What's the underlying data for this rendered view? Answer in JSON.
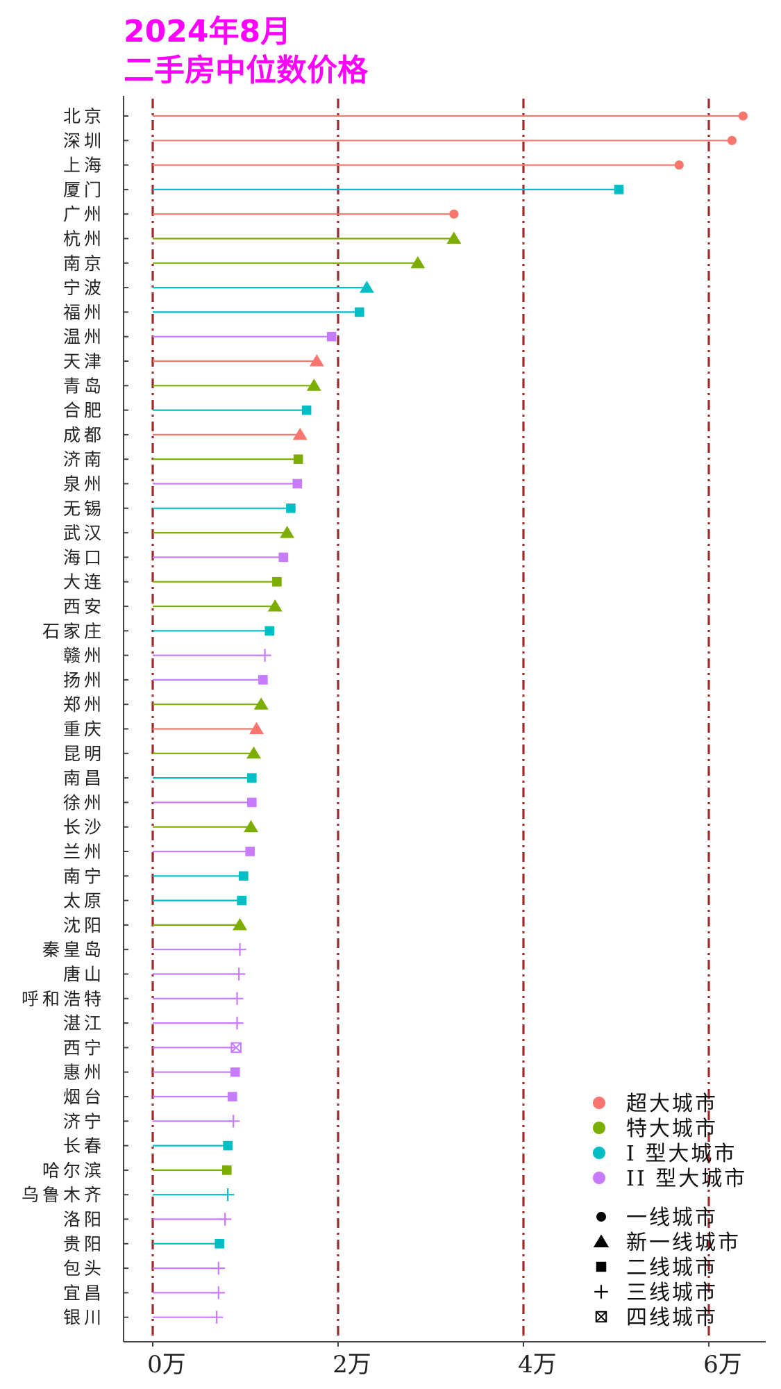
{
  "chart_data": {
    "type": "lollipop",
    "title_lines": [
      "2024年8月",
      "二手房中位数价格"
    ],
    "xlim": [
      -0.15,
      6.6
    ],
    "x_ticks": [
      {
        "value": 0,
        "label": "0万"
      },
      {
        "value": 2,
        "label": "2万"
      },
      {
        "value": 4,
        "label": "4万"
      },
      {
        "value": 6,
        "label": "6万"
      }
    ],
    "vlines": [
      0,
      2,
      4,
      6
    ],
    "vline_color": "#9e2a2b",
    "scale_colors": {
      "超大城市": "#f8766d",
      "特大城市": "#7cae00",
      "I 型大城市": "#00bfc4",
      "II 型大城市": "#c77cff"
    },
    "color_legend": [
      "超大城市",
      "特大城市",
      "I 型大城市",
      "II 型大城市"
    ],
    "shape_legend": [
      {
        "label": "一线城市",
        "shape": "circle"
      },
      {
        "label": "新一线城市",
        "shape": "triangle"
      },
      {
        "label": "二线城市",
        "shape": "square"
      },
      {
        "label": "三线城市",
        "shape": "plus"
      },
      {
        "label": "四线城市",
        "shape": "boxcross"
      }
    ],
    "points": [
      {
        "city": "北京",
        "value": 6.37,
        "scale": "超大城市",
        "tier": "circle"
      },
      {
        "city": "深圳",
        "value": 6.25,
        "scale": "超大城市",
        "tier": "circle"
      },
      {
        "city": "上海",
        "value": 5.68,
        "scale": "超大城市",
        "tier": "circle"
      },
      {
        "city": "厦门",
        "value": 5.03,
        "scale": "I 型大城市",
        "tier": "square"
      },
      {
        "city": "广州",
        "value": 3.25,
        "scale": "超大城市",
        "tier": "circle"
      },
      {
        "city": "杭州",
        "value": 3.25,
        "scale": "特大城市",
        "tier": "triangle"
      },
      {
        "city": "南京",
        "value": 2.86,
        "scale": "特大城市",
        "tier": "triangle"
      },
      {
        "city": "宁波",
        "value": 2.31,
        "scale": "I 型大城市",
        "tier": "triangle"
      },
      {
        "city": "福州",
        "value": 2.23,
        "scale": "I 型大城市",
        "tier": "square"
      },
      {
        "city": "温州",
        "value": 1.93,
        "scale": "II 型大城市",
        "tier": "square"
      },
      {
        "city": "天津",
        "value": 1.77,
        "scale": "超大城市",
        "tier": "triangle"
      },
      {
        "city": "青岛",
        "value": 1.74,
        "scale": "特大城市",
        "tier": "triangle"
      },
      {
        "city": "合肥",
        "value": 1.66,
        "scale": "I 型大城市",
        "tier": "square"
      },
      {
        "city": "成都",
        "value": 1.59,
        "scale": "超大城市",
        "tier": "triangle"
      },
      {
        "city": "济南",
        "value": 1.57,
        "scale": "特大城市",
        "tier": "square"
      },
      {
        "city": "泉州",
        "value": 1.56,
        "scale": "II 型大城市",
        "tier": "square"
      },
      {
        "city": "无锡",
        "value": 1.49,
        "scale": "I 型大城市",
        "tier": "square"
      },
      {
        "city": "武汉",
        "value": 1.45,
        "scale": "特大城市",
        "tier": "triangle"
      },
      {
        "city": "海口",
        "value": 1.41,
        "scale": "II 型大城市",
        "tier": "square"
      },
      {
        "city": "大连",
        "value": 1.34,
        "scale": "特大城市",
        "tier": "square"
      },
      {
        "city": "西安",
        "value": 1.32,
        "scale": "特大城市",
        "tier": "triangle"
      },
      {
        "city": "石家庄",
        "value": 1.26,
        "scale": "I 型大城市",
        "tier": "square"
      },
      {
        "city": "赣州",
        "value": 1.21,
        "scale": "II 型大城市",
        "tier": "plus"
      },
      {
        "city": "扬州",
        "value": 1.19,
        "scale": "II 型大城市",
        "tier": "square"
      },
      {
        "city": "郑州",
        "value": 1.17,
        "scale": "特大城市",
        "tier": "triangle"
      },
      {
        "city": "重庆",
        "value": 1.12,
        "scale": "超大城市",
        "tier": "triangle"
      },
      {
        "city": "昆明",
        "value": 1.09,
        "scale": "特大城市",
        "tier": "triangle"
      },
      {
        "city": "南昌",
        "value": 1.07,
        "scale": "I 型大城市",
        "tier": "square"
      },
      {
        "city": "徐州",
        "value": 1.07,
        "scale": "II 型大城市",
        "tier": "square"
      },
      {
        "city": "长沙",
        "value": 1.06,
        "scale": "特大城市",
        "tier": "triangle"
      },
      {
        "city": "兰州",
        "value": 1.05,
        "scale": "II 型大城市",
        "tier": "square"
      },
      {
        "city": "南宁",
        "value": 0.98,
        "scale": "I 型大城市",
        "tier": "square"
      },
      {
        "city": "太原",
        "value": 0.96,
        "scale": "I 型大城市",
        "tier": "square"
      },
      {
        "city": "沈阳",
        "value": 0.94,
        "scale": "特大城市",
        "tier": "triangle"
      },
      {
        "city": "秦皇岛",
        "value": 0.94,
        "scale": "II 型大城市",
        "tier": "plus"
      },
      {
        "city": "唐山",
        "value": 0.93,
        "scale": "II 型大城市",
        "tier": "plus"
      },
      {
        "city": "呼和浩特",
        "value": 0.91,
        "scale": "II 型大城市",
        "tier": "plus"
      },
      {
        "city": "湛江",
        "value": 0.91,
        "scale": "II 型大城市",
        "tier": "plus"
      },
      {
        "city": "西宁",
        "value": 0.9,
        "scale": "II 型大城市",
        "tier": "boxcross"
      },
      {
        "city": "惠州",
        "value": 0.89,
        "scale": "II 型大城市",
        "tier": "square"
      },
      {
        "city": "烟台",
        "value": 0.86,
        "scale": "II 型大城市",
        "tier": "square"
      },
      {
        "city": "济宁",
        "value": 0.87,
        "scale": "II 型大城市",
        "tier": "plus"
      },
      {
        "city": "长春",
        "value": 0.81,
        "scale": "I 型大城市",
        "tier": "square"
      },
      {
        "city": "哈尔滨",
        "value": 0.8,
        "scale": "特大城市",
        "tier": "square"
      },
      {
        "city": "乌鲁木齐",
        "value": 0.81,
        "scale": "I 型大城市",
        "tier": "plus"
      },
      {
        "city": "洛阳",
        "value": 0.78,
        "scale": "II 型大城市",
        "tier": "plus"
      },
      {
        "city": "贵阳",
        "value": 0.72,
        "scale": "I 型大城市",
        "tier": "square"
      },
      {
        "city": "包头",
        "value": 0.71,
        "scale": "II 型大城市",
        "tier": "plus"
      },
      {
        "city": "宜昌",
        "value": 0.71,
        "scale": "II 型大城市",
        "tier": "plus"
      },
      {
        "city": "银川",
        "value": 0.69,
        "scale": "II 型大城市",
        "tier": "plus"
      }
    ]
  }
}
